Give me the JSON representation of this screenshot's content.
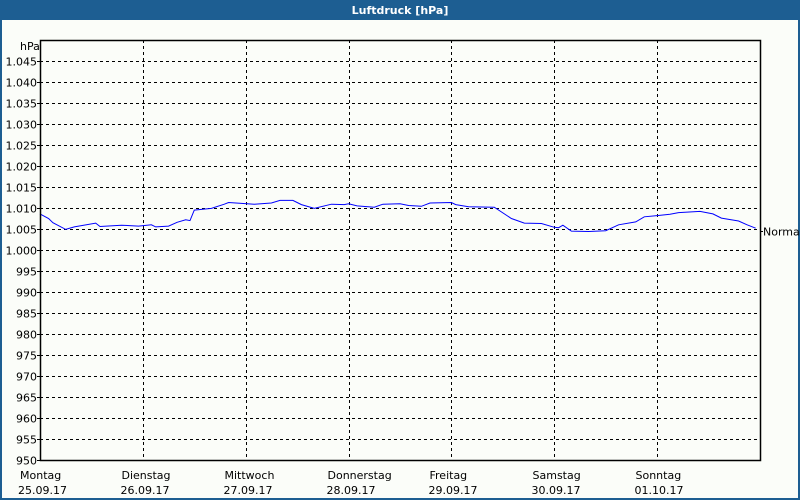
{
  "window": {
    "title": "Luftdruck [hPa]"
  },
  "colors": {
    "titlebar": "#1d5e92",
    "series": "#0000ff",
    "background": "#fbfdf9"
  },
  "chart_data": {
    "type": "line",
    "title": "Luftdruck [hPa]",
    "ylabel": "hPa",
    "ylim": [
      950,
      1050
    ],
    "yticks": [
      950,
      955,
      960,
      965,
      970,
      975,
      980,
      985,
      990,
      995,
      1000,
      1005,
      1010,
      1015,
      1020,
      1025,
      1030,
      1035,
      1040,
      1045
    ],
    "ytick_labels": [
      "950",
      "955",
      "960",
      "965",
      "970",
      "975",
      "980",
      "985",
      "990",
      "995",
      "1.000",
      "1.005",
      "1.010",
      "1.015",
      "1.020",
      "1.025",
      "1.030",
      "1.035",
      "1.040",
      "1.045"
    ],
    "xlim": [
      "2017-09-25T00:00",
      "2017-10-02T00:00"
    ],
    "xticks": [
      {
        "day": "Montag",
        "date": "25.09.17"
      },
      {
        "day": "Dienstag",
        "date": "26.09.17"
      },
      {
        "day": "Mittwoch",
        "date": "27.09.17"
      },
      {
        "day": "Donnerstag",
        "date": "28.09.17"
      },
      {
        "day": "Freitag",
        "date": "29.09.17"
      },
      {
        "day": "Samstag",
        "date": "30.09.17"
      },
      {
        "day": "Sonntag",
        "date": "01.10.17"
      }
    ],
    "grid": true,
    "reference": {
      "label": "Normal",
      "value": 1004.5
    },
    "series": [
      {
        "color": "#0000ff",
        "points": [
          [
            "2017-09-25T00:00",
            1008.6
          ],
          [
            "2017-09-25T02:00",
            1007.5
          ],
          [
            "2017-09-25T03:00",
            1006.5
          ],
          [
            "2017-09-25T06:00",
            1004.9
          ],
          [
            "2017-09-25T08:00",
            1005.5
          ],
          [
            "2017-09-25T13:00",
            1006.4
          ],
          [
            "2017-09-25T14:00",
            1005.6
          ],
          [
            "2017-09-25T19:00",
            1005.9
          ],
          [
            "2017-09-25T23:00",
            1005.7
          ],
          [
            "2017-09-26T02:00",
            1006.0
          ],
          [
            "2017-09-26T03:00",
            1005.5
          ],
          [
            "2017-09-26T06:00",
            1005.7
          ],
          [
            "2017-09-26T08:00",
            1006.6
          ],
          [
            "2017-09-26T10:00",
            1007.2
          ],
          [
            "2017-09-26T11:00",
            1007.0
          ],
          [
            "2017-09-26T12:00",
            1009.5
          ],
          [
            "2017-09-26T16:00",
            1009.9
          ],
          [
            "2017-09-26T19:00",
            1010.9
          ],
          [
            "2017-09-26T20:00",
            1011.3
          ],
          [
            "2017-09-26T23:00",
            1011.1
          ],
          [
            "2017-09-27T02:00",
            1010.9
          ],
          [
            "2017-09-27T06:00",
            1011.2
          ],
          [
            "2017-09-27T08:00",
            1011.8
          ],
          [
            "2017-09-27T11:00",
            1011.8
          ],
          [
            "2017-09-27T13:00",
            1010.8
          ],
          [
            "2017-09-27T16:00",
            1009.9
          ],
          [
            "2017-09-27T20:00",
            1010.9
          ],
          [
            "2017-09-27T23:00",
            1010.8
          ],
          [
            "2017-09-28T00:00",
            1011.0
          ],
          [
            "2017-09-28T02:00",
            1010.5
          ],
          [
            "2017-09-28T06:00",
            1010.2
          ],
          [
            "2017-09-28T08:00",
            1010.9
          ],
          [
            "2017-09-28T12:00",
            1011.0
          ],
          [
            "2017-09-28T14:00",
            1010.6
          ],
          [
            "2017-09-28T17:00",
            1010.4
          ],
          [
            "2017-09-28T19:00",
            1011.2
          ],
          [
            "2017-09-29T00:00",
            1011.3
          ],
          [
            "2017-09-29T01:00",
            1010.8
          ],
          [
            "2017-09-29T04:00",
            1010.3
          ],
          [
            "2017-09-29T10:00",
            1010.2
          ],
          [
            "2017-09-29T14:00",
            1007.5
          ],
          [
            "2017-09-29T17:00",
            1006.4
          ],
          [
            "2017-09-29T21:00",
            1006.3
          ],
          [
            "2017-09-30T00:00",
            1005.4
          ],
          [
            "2017-09-30T01:00",
            1005.3
          ],
          [
            "2017-09-30T02:00",
            1005.9
          ],
          [
            "2017-09-30T04:00",
            1004.5
          ],
          [
            "2017-09-30T08:00",
            1004.4
          ],
          [
            "2017-09-30T12:00",
            1004.6
          ],
          [
            "2017-09-30T15:00",
            1006.0
          ],
          [
            "2017-09-30T19:00",
            1006.7
          ],
          [
            "2017-09-30T21:00",
            1007.9
          ],
          [
            "2017-10-01T00:00",
            1008.2
          ],
          [
            "2017-10-01T03:00",
            1008.5
          ],
          [
            "2017-10-01T05:00",
            1008.9
          ],
          [
            "2017-10-01T10:00",
            1009.2
          ],
          [
            "2017-10-01T13:00",
            1008.6
          ],
          [
            "2017-10-01T15:00",
            1007.6
          ],
          [
            "2017-10-01T19:00",
            1006.9
          ],
          [
            "2017-10-01T21:00",
            1006.0
          ],
          [
            "2017-10-01T23:00",
            1005.2
          ]
        ]
      }
    ]
  }
}
